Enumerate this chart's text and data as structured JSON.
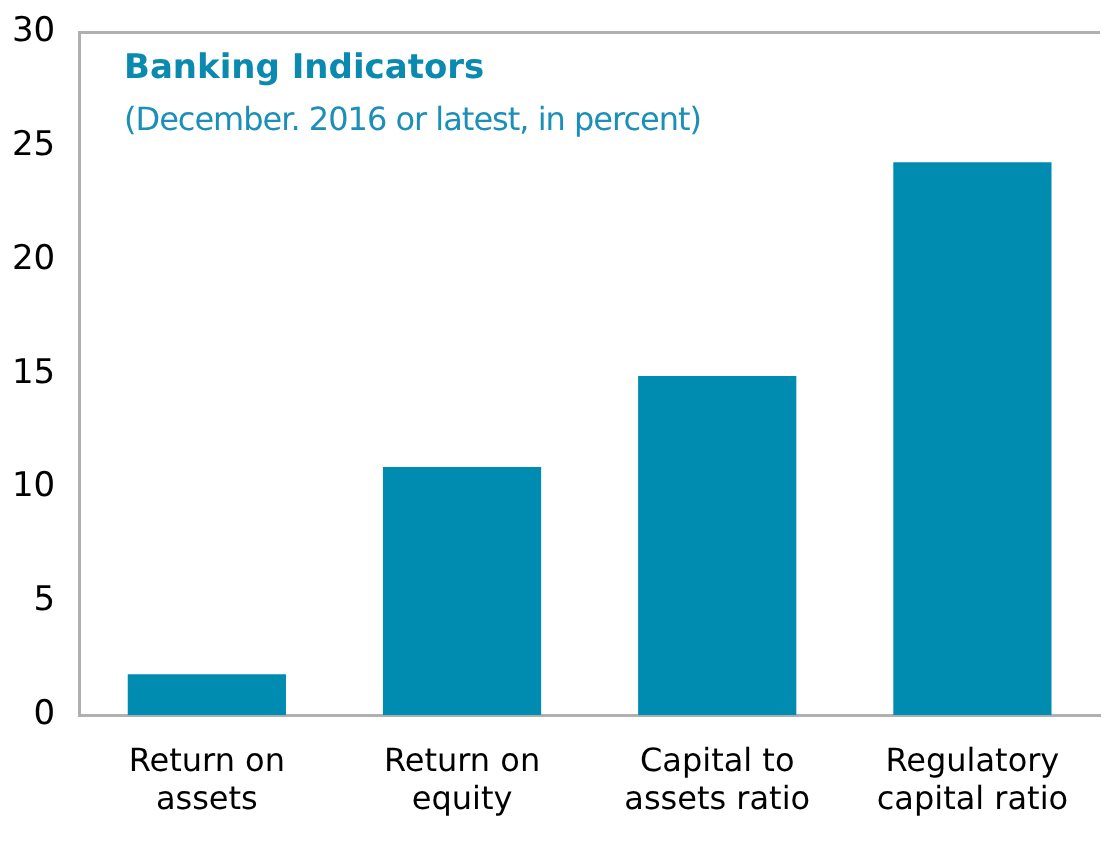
{
  "chart_data": {
    "type": "bar",
    "title": "Banking Indicators",
    "subtitle": "(December. 2016 or latest, in percent)",
    "categories": [
      "Return on assets",
      "Return on equity",
      "Capital to assets ratio",
      "Regulatory capital ratio"
    ],
    "values": [
      1.8,
      10.9,
      14.9,
      24.3
    ],
    "color": "#008bb0",
    "ylim": [
      0,
      30
    ],
    "yticks": [
      0,
      5,
      10,
      15,
      20,
      25,
      30
    ],
    "grid": false,
    "legend": false
  }
}
